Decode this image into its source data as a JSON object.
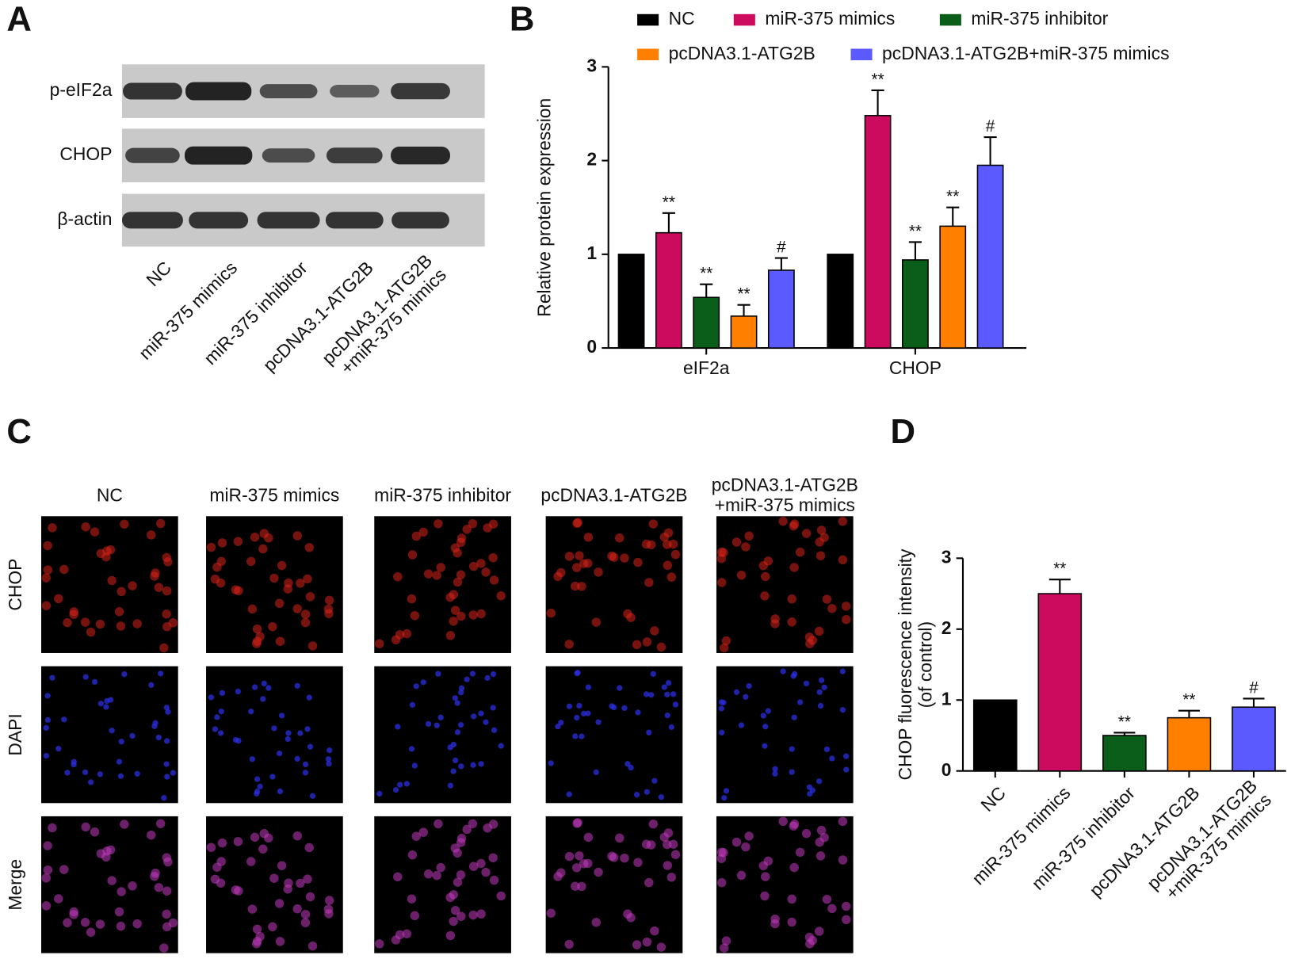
{
  "panel_a": {
    "label": "A",
    "rows": [
      "p-eIF2a",
      "CHOP",
      "β-actin"
    ],
    "lanes": [
      "NC",
      "miR-375 mimics",
      "miR-375 inhibitor",
      "pcDNA3.1-ATG2B",
      "pcDNA3.1-ATG2B\n+miR-375 mimics"
    ]
  },
  "panel_c": {
    "label": "C",
    "columns": [
      "NC",
      "miR-375 mimics",
      "miR-375 inhibitor",
      "pcDNA3.1-ATG2B",
      "pcDNA3.1-ATG2B\n+miR-375 mimics"
    ],
    "rows": [
      "CHOP",
      "DAPI",
      "Merge"
    ]
  },
  "chart_data": [
    {
      "type": "bar",
      "panel": "B",
      "ylabel": "Relative protein expression",
      "categories": [
        "eIF2a",
        "CHOP"
      ],
      "series": [
        {
          "name": "NC",
          "color": "#000000",
          "values": [
            1,
            1
          ],
          "errors": [
            0,
            0
          ],
          "annotations": [
            null,
            null
          ]
        },
        {
          "name": "miR-375 mimics",
          "color": "#cc0a5e",
          "values": [
            1.23,
            2.48
          ],
          "errors": [
            0.21,
            0.27
          ],
          "annotations": [
            "**",
            "**"
          ]
        },
        {
          "name": "miR-375 inhibitor",
          "color": "#0b5e1a",
          "values": [
            0.54,
            0.94
          ],
          "errors": [
            0.14,
            0.19
          ],
          "annotations": [
            "**",
            "**"
          ]
        },
        {
          "name": "pcDNA3.1-ATG2B",
          "color": "#ff8000",
          "values": [
            0.34,
            1.3
          ],
          "errors": [
            0.12,
            0.2
          ],
          "annotations": [
            "**",
            "**"
          ]
        },
        {
          "name": "pcDNA3.1-ATG2B+miR-375 mimics",
          "color": "#5a5aff",
          "values": [
            0.83,
            1.95
          ],
          "errors": [
            0.13,
            0.3
          ],
          "annotations": [
            "#",
            "#"
          ]
        }
      ],
      "ylim": [
        0,
        3
      ],
      "yticks": [
        0,
        1,
        2,
        3
      ],
      "legend": "top"
    },
    {
      "type": "bar",
      "panel": "D",
      "ylabel": "CHOP fluorescence intensity\n(of control)",
      "categories": [
        "NC",
        "miR-375 mimics",
        "miR-375 inhibitor",
        "pcDNA3.1-ATG2B",
        "pcDNA3.1-ATG2B\n+miR-375 mimics"
      ],
      "values": [
        1,
        2.5,
        0.5,
        0.75,
        0.9
      ],
      "errors": [
        0,
        0.2,
        0.04,
        0.1,
        0.12
      ],
      "annotations": [
        null,
        "**",
        "**",
        "**",
        "#"
      ],
      "colors": [
        "#000000",
        "#cc0a5e",
        "#0b5e1a",
        "#ff8000",
        "#5a5aff"
      ],
      "ylim": [
        0,
        3
      ],
      "yticks": [
        0,
        1,
        2,
        3
      ]
    }
  ]
}
